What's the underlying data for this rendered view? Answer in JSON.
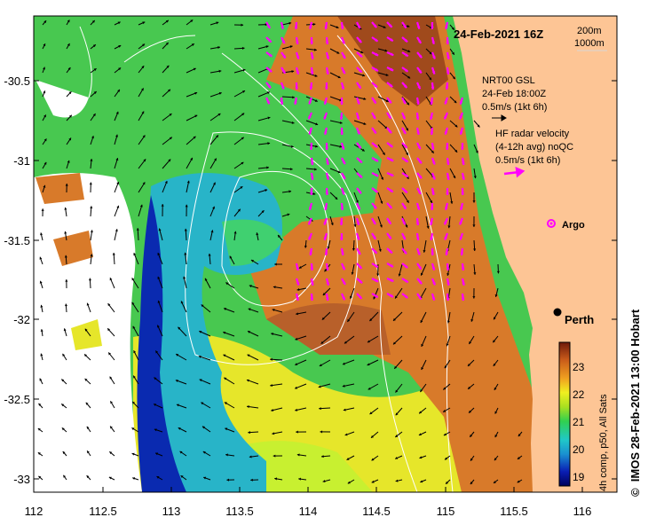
{
  "map": {
    "date_label": "24-Feb-2021 16Z",
    "contour_legend": [
      "200m",
      "1000m"
    ],
    "lon_ticks": [
      "112",
      "112.5",
      "113",
      "113.5",
      "114",
      "114.5",
      "115",
      "115.5",
      "116"
    ],
    "lat_ticks": [
      "-30.5",
      "-31",
      "-31.5",
      "-32",
      "-32.5",
      "-33"
    ],
    "gsl_legend": {
      "title": "NRT00 GSL",
      "time": "24-Feb 18:00Z",
      "scale": "0.5m/s (1kt 6h)"
    },
    "hf_legend": {
      "title": "HF radar velocity",
      "avg": "(4-12h avg) noQC",
      "scale": "0.5m/s (1kt 6h)"
    },
    "argo_label": "Argo",
    "city_label": "Perth",
    "colorbar": {
      "ticks": [
        "23",
        "22",
        "21",
        "20",
        "19"
      ],
      "caption": "4h comp, p50, All Sats"
    },
    "credit": "IMOS 28-Feb-2021 13:00 Hobart",
    "colors": {
      "land": "#fdc595",
      "gsl_vector": "#000000",
      "hf_vector": "#ff00ff",
      "contour": "#ffffff",
      "frame": "#000000"
    }
  }
}
